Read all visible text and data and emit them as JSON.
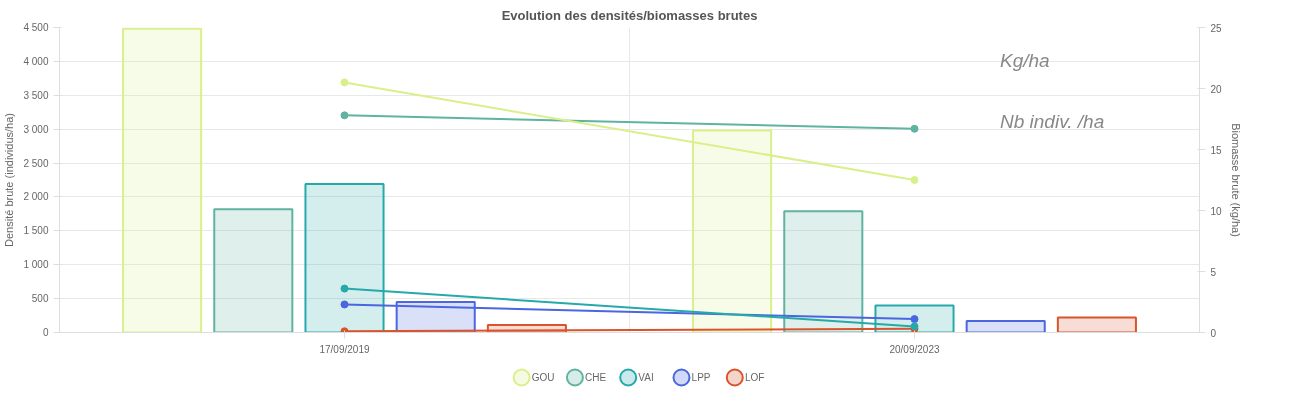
{
  "chart_data": {
    "type": "bar",
    "title": "Evolution des densités/biomasses brutes",
    "ylabel": "Densité brute (individus/ha)",
    "y2label": "Biomasse brute (kg/ha)",
    "categories": [
      "17/09/2019",
      "20/09/2023"
    ],
    "series": [
      {
        "name": "GOU",
        "color": "#d9f08a",
        "values": [
          4480,
          2980
        ]
      },
      {
        "name": "CHE",
        "color": "#5fb3a0",
        "values": [
          1820,
          1790
        ]
      },
      {
        "name": "VAI",
        "color": "#26a9ab",
        "values": [
          2190,
          400
        ]
      },
      {
        "name": "LPP",
        "color": "#4a66e0",
        "values": [
          450,
          170
        ]
      },
      {
        "name": "LOF",
        "color": "#d9542c",
        "values": [
          110,
          220
        ]
      },
      {
        "type": "line",
        "axis": "y2",
        "color": "#d9f08a",
        "values": [
          20.5,
          12.5
        ]
      },
      {
        "type": "line",
        "axis": "y2",
        "color": "#5fb3a0",
        "values": [
          17.8,
          16.7
        ]
      },
      {
        "type": "line",
        "axis": "y2",
        "color": "#26a9ab",
        "values": [
          3.6,
          0.5
        ]
      },
      {
        "type": "line",
        "axis": "y2",
        "color": "#4a66e0",
        "values": [
          2.3,
          1.1
        ]
      },
      {
        "type": "line",
        "axis": "y2",
        "color": "#d9542c",
        "values": [
          0.1,
          0.3
        ]
      }
    ],
    "ylim": [
      0,
      4500
    ],
    "yticks": [
      0,
      500,
      {
        "value": 1000,
        "label": "1 000"
      },
      {
        "value": 1500,
        "label": "1 500"
      },
      {
        "value": 2000,
        "label": "2 000"
      },
      {
        "value": 2500,
        "label": "2 500"
      },
      {
        "value": 3000,
        "label": "3 000"
      },
      {
        "value": 3500,
        "label": "3 500"
      },
      {
        "value": 4000,
        "label": "4 000"
      },
      {
        "value": 4500,
        "label": "4 500"
      }
    ],
    "y2lim": [
      0,
      25
    ],
    "y2ticks": [
      0,
      5,
      10,
      15,
      20,
      25
    ],
    "marker": "circle",
    "grid": true,
    "legend": "bottom",
    "annotations": [
      "Kg/ha",
      "Nb indiv. /ha"
    ]
  }
}
